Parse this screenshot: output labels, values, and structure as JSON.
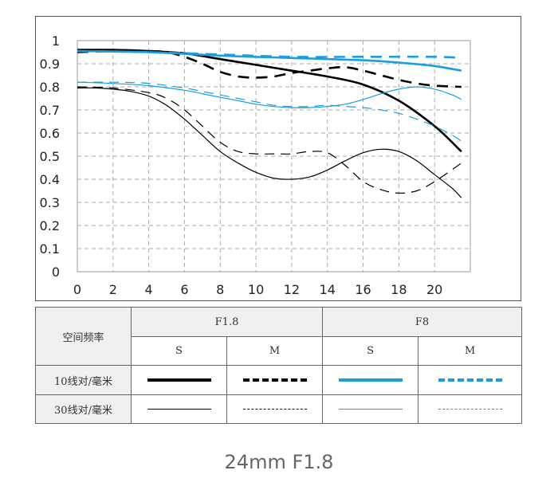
{
  "chart_data": {
    "type": "line",
    "title": "",
    "xlabel": "",
    "ylabel": "",
    "xlim": [
      0,
      22
    ],
    "ylim": [
      0,
      1
    ],
    "xticks": [
      "0",
      "2",
      "4",
      "6",
      "8",
      "10",
      "12",
      "14",
      "16",
      "18",
      "20"
    ],
    "yticks": [
      "0",
      "0.1",
      "0.2",
      "0.3",
      "0.4",
      "0.5",
      "0.6",
      "0.7",
      "0.8",
      "0.9",
      "1"
    ],
    "grid": true,
    "series": [
      {
        "aperture": "F1.8",
        "orientation": "S",
        "frequency": "10线对/毫米",
        "color": "#000000",
        "style": "solid",
        "weight": "thick",
        "x": [
          0,
          2,
          4,
          6,
          8,
          10,
          12,
          14,
          16,
          18,
          20,
          21.5
        ],
        "y": [
          0.96,
          0.96,
          0.955,
          0.945,
          0.92,
          0.895,
          0.87,
          0.845,
          0.81,
          0.74,
          0.63,
          0.52
        ]
      },
      {
        "aperture": "F1.8",
        "orientation": "M",
        "frequency": "10线对/毫米",
        "color": "#000000",
        "style": "dashed",
        "weight": "thick",
        "x": [
          0,
          2,
          4,
          5,
          6,
          7,
          8,
          9,
          10,
          11,
          12,
          13,
          14,
          15,
          16,
          17,
          18,
          19,
          20,
          21.5
        ],
        "y": [
          0.95,
          0.955,
          0.955,
          0.95,
          0.93,
          0.9,
          0.865,
          0.845,
          0.84,
          0.845,
          0.86,
          0.87,
          0.88,
          0.885,
          0.87,
          0.85,
          0.83,
          0.815,
          0.805,
          0.8
        ]
      },
      {
        "aperture": "F8",
        "orientation": "S",
        "frequency": "10线对/毫米",
        "color": "#1a9ee0",
        "style": "solid",
        "weight": "thick",
        "x": [
          0,
          4,
          8,
          12,
          16,
          18,
          20,
          21.5
        ],
        "y": [
          0.955,
          0.95,
          0.935,
          0.925,
          0.915,
          0.905,
          0.89,
          0.87
        ]
      },
      {
        "aperture": "F8",
        "orientation": "M",
        "frequency": "10线对/毫米",
        "color": "#1a9ee0",
        "style": "dashed",
        "weight": "thick",
        "x": [
          0,
          4,
          8,
          12,
          16,
          20,
          21.5
        ],
        "y": [
          0.955,
          0.95,
          0.94,
          0.93,
          0.93,
          0.93,
          0.925
        ]
      },
      {
        "aperture": "F1.8",
        "orientation": "S",
        "frequency": "30线对/毫米",
        "color": "#000000",
        "style": "solid",
        "weight": "thin",
        "x": [
          0,
          1,
          2,
          3,
          4,
          5,
          6,
          7,
          8,
          9,
          10,
          11,
          12,
          13,
          14,
          15,
          16,
          17,
          18,
          19,
          20,
          21,
          21.5
        ],
        "y": [
          0.795,
          0.795,
          0.79,
          0.78,
          0.76,
          0.72,
          0.66,
          0.59,
          0.52,
          0.47,
          0.43,
          0.405,
          0.4,
          0.41,
          0.44,
          0.48,
          0.515,
          0.53,
          0.52,
          0.48,
          0.42,
          0.36,
          0.32
        ]
      },
      {
        "aperture": "F1.8",
        "orientation": "M",
        "frequency": "30线对/毫米",
        "color": "#000000",
        "style": "dashed",
        "weight": "thin",
        "x": [
          0,
          2,
          4,
          5,
          6,
          7,
          8,
          9,
          10,
          11,
          12,
          13,
          14,
          15,
          16,
          17,
          18,
          19,
          20,
          21.5
        ],
        "y": [
          0.8,
          0.795,
          0.775,
          0.75,
          0.7,
          0.63,
          0.56,
          0.52,
          0.51,
          0.51,
          0.51,
          0.52,
          0.515,
          0.46,
          0.39,
          0.355,
          0.34,
          0.35,
          0.39,
          0.47
        ]
      },
      {
        "aperture": "F8",
        "orientation": "S",
        "frequency": "30线对/毫米",
        "color": "#1a9ee0",
        "style": "solid",
        "weight": "thin",
        "x": [
          0,
          2,
          4,
          6,
          7,
          8,
          9,
          10,
          11,
          12,
          13,
          14,
          15,
          16,
          17,
          18,
          19,
          20,
          21,
          21.5
        ],
        "y": [
          0.82,
          0.815,
          0.805,
          0.785,
          0.77,
          0.755,
          0.74,
          0.725,
          0.715,
          0.71,
          0.71,
          0.715,
          0.725,
          0.745,
          0.77,
          0.79,
          0.8,
          0.79,
          0.765,
          0.745
        ]
      },
      {
        "aperture": "F8",
        "orientation": "M",
        "frequency": "30线对/毫米",
        "color": "#1a9ee0",
        "style": "dashed",
        "weight": "thin",
        "x": [
          0,
          2,
          4,
          6,
          7,
          8,
          9,
          10,
          11,
          12,
          13,
          14,
          15,
          16,
          17,
          18,
          19,
          20,
          21,
          21.5
        ],
        "y": [
          0.82,
          0.82,
          0.815,
          0.795,
          0.78,
          0.765,
          0.75,
          0.735,
          0.72,
          0.715,
          0.715,
          0.72,
          0.715,
          0.71,
          0.7,
          0.685,
          0.66,
          0.63,
          0.59,
          0.565
        ]
      }
    ]
  },
  "legend_table": {
    "row_header": "空间频率",
    "groups": [
      "F1.8",
      "F8"
    ],
    "orientations": [
      "S",
      "M",
      "S",
      "M"
    ],
    "rows": [
      "10线对/毫米",
      "30线对/毫米"
    ]
  },
  "caption": "24mm F1.8"
}
